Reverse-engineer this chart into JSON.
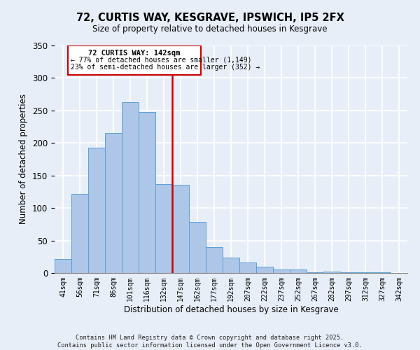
{
  "title": "72, CURTIS WAY, KESGRAVE, IPSWICH, IP5 2FX",
  "subtitle": "Size of property relative to detached houses in Kesgrave",
  "xlabel": "Distribution of detached houses by size in Kesgrave",
  "ylabel": "Number of detached properties",
  "bar_labels": [
    "41sqm",
    "56sqm",
    "71sqm",
    "86sqm",
    "101sqm",
    "116sqm",
    "132sqm",
    "147sqm",
    "162sqm",
    "177sqm",
    "192sqm",
    "207sqm",
    "222sqm",
    "237sqm",
    "252sqm",
    "267sqm",
    "282sqm",
    "297sqm",
    "312sqm",
    "327sqm",
    "342sqm"
  ],
  "bar_values": [
    22,
    122,
    193,
    215,
    263,
    248,
    137,
    136,
    79,
    40,
    24,
    16,
    10,
    5,
    5,
    1,
    2,
    1,
    1,
    1,
    0
  ],
  "bar_color": "#aec6e8",
  "bar_edge_color": "#5a9fd4",
  "vline_color": "#cc0000",
  "annotation_title": "72 CURTIS WAY: 142sqm",
  "annotation_line1": "← 77% of detached houses are smaller (1,149)",
  "annotation_line2": "23% of semi-detached houses are larger (352) →",
  "annotation_box_color": "#ffffff",
  "annotation_box_edge": "#cc0000",
  "footnote1": "Contains HM Land Registry data © Crown copyright and database right 2025.",
  "footnote2": "Contains public sector information licensed under the Open Government Licence v3.0.",
  "ylim": [
    0,
    350
  ],
  "background_color": "#e8eef8"
}
